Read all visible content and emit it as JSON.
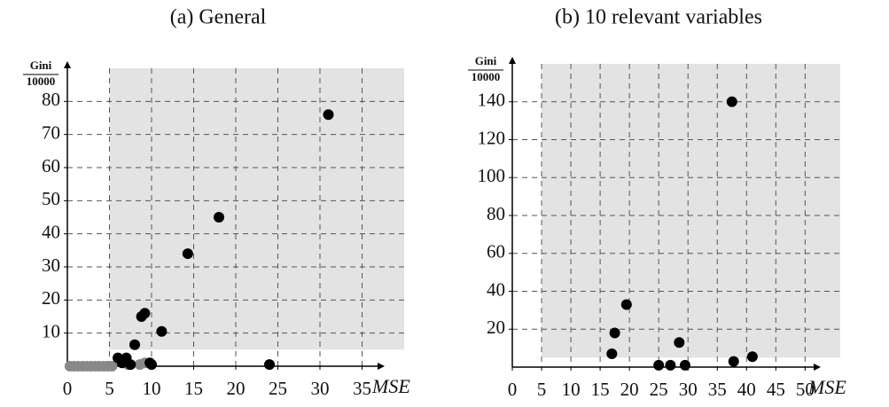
{
  "chart_data": [
    {
      "type": "scatter",
      "title": "(a) General",
      "xlabel": "MSE",
      "ylabel_top": "Gini",
      "ylabel_bottom": "10000",
      "xlim": [
        0,
        40
      ],
      "ylim": [
        0,
        90
      ],
      "xticks": [
        0,
        5,
        10,
        15,
        20,
        25,
        30,
        35
      ],
      "yticks": [
        10,
        20,
        30,
        40,
        50,
        60,
        70,
        80
      ],
      "grid": true,
      "shade": {
        "x": [
          5,
          40
        ],
        "y": [
          5,
          90
        ],
        "color": "#e3e3e3"
      },
      "series": [
        {
          "color": "#888888",
          "x": [
            0.3,
            0.8,
            1.3,
            1.8,
            2.3,
            2.8,
            3.3,
            3.8,
            4.3,
            4.8,
            5.3,
            7.2,
            8.6,
            9.2
          ],
          "values": [
            0,
            0,
            0,
            0,
            0,
            0,
            0,
            0,
            0,
            0,
            0,
            0.5,
            0.5,
            1
          ]
        },
        {
          "color": "#000000",
          "x": [
            31,
            18,
            14.3,
            9.2,
            8.8,
            11.2,
            8,
            6,
            7,
            6.5,
            7.5,
            9.8,
            10,
            24
          ],
          "values": [
            76,
            45,
            34,
            16,
            15,
            10.5,
            6.5,
            2.5,
            2.5,
            1,
            0.5,
            1,
            0.5,
            0.5
          ]
        }
      ]
    },
    {
      "type": "scatter",
      "title": "(b) 10 relevant variables",
      "xlabel": "MSE",
      "ylabel_top": "Gini",
      "ylabel_bottom": "10000",
      "xlim": [
        0,
        56
      ],
      "ylim": [
        0,
        160
      ],
      "xticks": [
        0,
        5,
        10,
        15,
        20,
        25,
        30,
        35,
        40,
        45,
        50
      ],
      "yticks": [
        20,
        40,
        60,
        80,
        100,
        120,
        140
      ],
      "grid": true,
      "shade": {
        "x": [
          5,
          56
        ],
        "y": [
          5,
          160
        ],
        "color": "#e3e3e3"
      },
      "series": [
        {
          "color": "#000000",
          "x": [
            37.5,
            19.5,
            17.5,
            17,
            28.5,
            25,
            27,
            29.5,
            37.8,
            41
          ],
          "values": [
            140,
            33,
            18,
            7,
            13,
            1,
            1,
            1,
            3,
            5.5
          ]
        }
      ]
    }
  ]
}
